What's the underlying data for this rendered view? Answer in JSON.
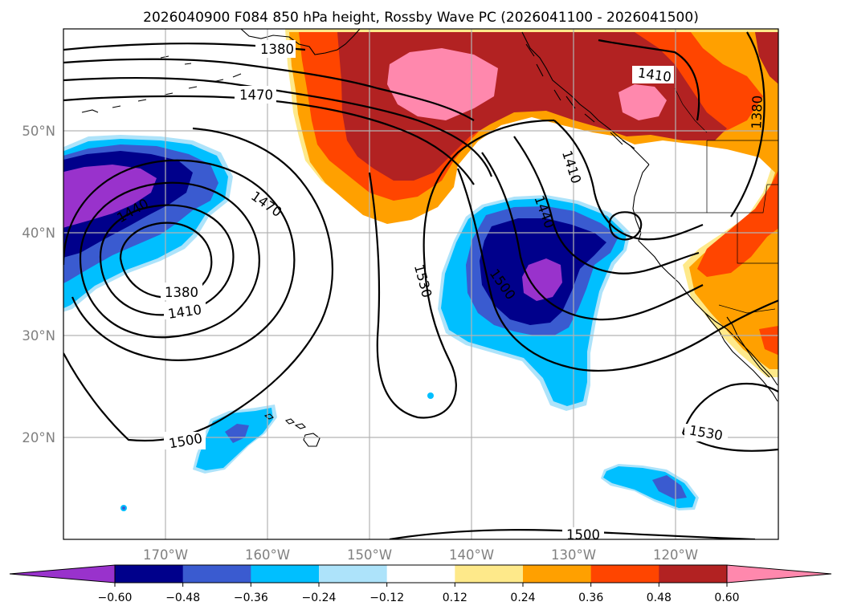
{
  "title": "2026040900 F084 850 hPa height, Rossby Wave PC (2026041100 - 2026041500)",
  "lat_labels": [
    "50°N",
    "40°N",
    "30°N",
    "20°N"
  ],
  "lon_labels": [
    "170°W",
    "160°W",
    "150°W",
    "140°W",
    "130°W",
    "120°W"
  ],
  "contour_labels": [
    "1380",
    "1470",
    "1410",
    "1380",
    "1410",
    "1440",
    "1470",
    "1380",
    "1410",
    "1530",
    "1440",
    "1500",
    "1500",
    "1530",
    "1500"
  ],
  "colorbar": {
    "ticks": [
      "−0.60",
      "−0.48",
      "−0.36",
      "−0.24",
      "−0.12",
      "0.12",
      "0.24",
      "0.36",
      "0.48",
      "0.60"
    ],
    "colors": [
      "#9932cc",
      "#00008b",
      "#3a5bd0",
      "#00bfff",
      "#ade3fa",
      "#ffffff",
      "#fee98a",
      "#ffa000",
      "#ff4500",
      "#b22222",
      "#ff88ad"
    ],
    "extend": "both"
  },
  "chart_data": {
    "type": "heatmap",
    "title": "2026040900 F084 850 hPa height, Rossby Wave PC (2026041100 - 2026041500)",
    "fill_field": "Rossby Wave PC",
    "contour_field": "850 hPa height",
    "lon_range": [
      "180°W",
      "110°W"
    ],
    "lat_range": [
      "10°N",
      "60°N"
    ],
    "contour_levels": [
      1380,
      1410,
      1440,
      1470,
      1500,
      1530
    ],
    "color_levels": [
      -0.6,
      -0.48,
      -0.36,
      -0.24,
      -0.12,
      0.12,
      0.24,
      0.36,
      0.48,
      0.6
    ],
    "grid": true,
    "features": [
      {
        "name": "low",
        "lon": -170,
        "lat": 37,
        "min_contour": 1380
      },
      {
        "name": "trough",
        "lon": -133,
        "lat": 37,
        "min_contour": 1440
      },
      {
        "name": "ridge",
        "lon": -140,
        "lat": 54,
        "max_pc": 0.6
      },
      {
        "name": "neg_anomaly",
        "lon": -132,
        "lat": 35,
        "min_pc": -0.6
      },
      {
        "name": "neg_anomaly",
        "lon": -172,
        "lat": 43,
        "min_pc": -0.6
      }
    ]
  }
}
